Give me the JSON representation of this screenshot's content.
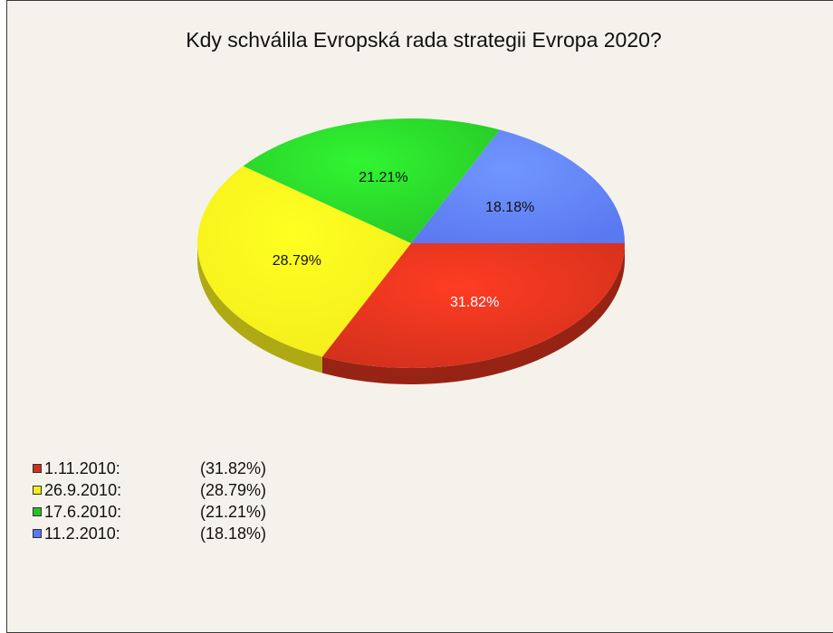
{
  "chart_data": {
    "type": "pie",
    "title": "Kdy schválila Evropská rada strategii Evropa 2020?",
    "slices": [
      {
        "label": "1.11.2010:",
        "value": 31.82,
        "percent_label": "31.82%",
        "legend_value": "(31.82%)",
        "color": "#d0301c",
        "text_color": "#ffffff"
      },
      {
        "label": "26.9.2010:",
        "value": 28.79,
        "percent_label": "28.79%",
        "legend_value": "(28.79%)",
        "color": "#f3ec1a",
        "text_color": "#111111"
      },
      {
        "label": "17.6.2010:",
        "value": 21.21,
        "percent_label": "21.21%",
        "legend_value": "(21.21%)",
        "color": "#27c427",
        "text_color": "#111111"
      },
      {
        "label": "11.2.2010:",
        "value": 18.18,
        "percent_label": "18.18%",
        "legend_value": "(18.18%)",
        "color": "#5a78f0",
        "text_color": "#111111"
      }
    ],
    "legend_position": "bottom-left"
  }
}
